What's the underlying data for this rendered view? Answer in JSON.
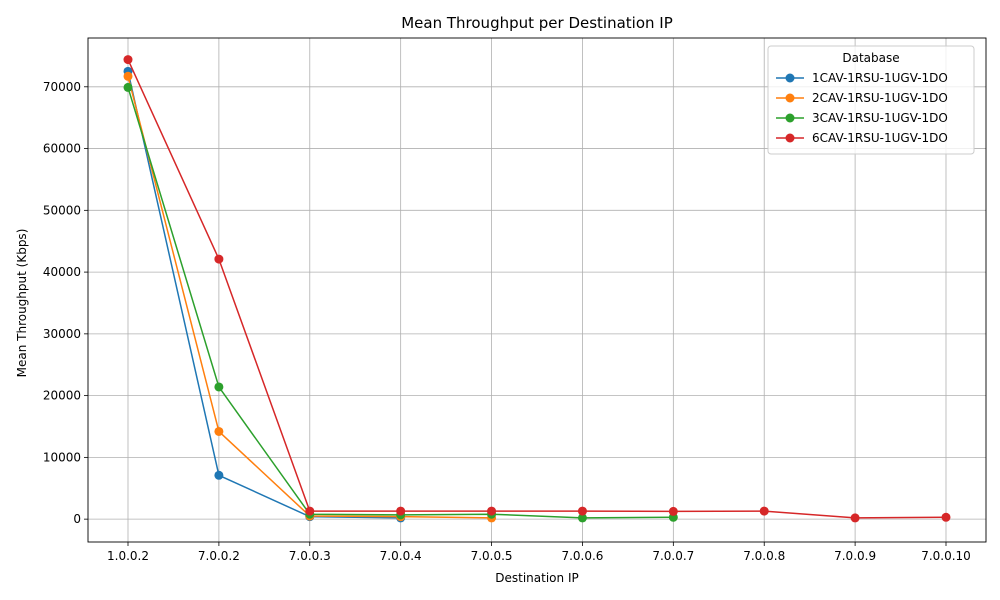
{
  "chart_data": {
    "type": "line",
    "title": "Mean Throughput per Destination IP",
    "xlabel": "Destination IP",
    "ylabel": "Mean Throughput (Kbps)",
    "categories": [
      "1.0.0.2",
      "7.0.0.2",
      "7.0.0.3",
      "7.0.0.4",
      "7.0.0.5",
      "7.0.0.6",
      "7.0.0.7",
      "7.0.0.8",
      "7.0.0.9",
      "7.0.0.10"
    ],
    "ylim": [
      -3700,
      77900
    ],
    "yticks": [
      0,
      10000,
      20000,
      30000,
      40000,
      50000,
      60000,
      70000
    ],
    "grid": true,
    "legend": {
      "title": "Database",
      "position": "top-right"
    },
    "series": [
      {
        "name": "1CAV-1RSU-1UGV-1DO",
        "color": "#1f77b4",
        "values": [
          72500,
          7100,
          400,
          200,
          null,
          null,
          null,
          null,
          null,
          null
        ]
      },
      {
        "name": "2CAV-1RSU-1UGV-1DO",
        "color": "#ff7f0e",
        "values": [
          71700,
          14200,
          500,
          400,
          200,
          null,
          null,
          null,
          null,
          null
        ]
      },
      {
        "name": "3CAV-1RSU-1UGV-1DO",
        "color": "#2ca02c",
        "values": [
          69900,
          21400,
          800,
          700,
          800,
          200,
          300,
          null,
          null,
          null
        ]
      },
      {
        "name": "6CAV-1RSU-1UGV-1DO",
        "color": "#d62728",
        "values": [
          74400,
          42100,
          1300,
          1300,
          1300,
          1300,
          1250,
          1300,
          200,
          300
        ]
      }
    ]
  }
}
